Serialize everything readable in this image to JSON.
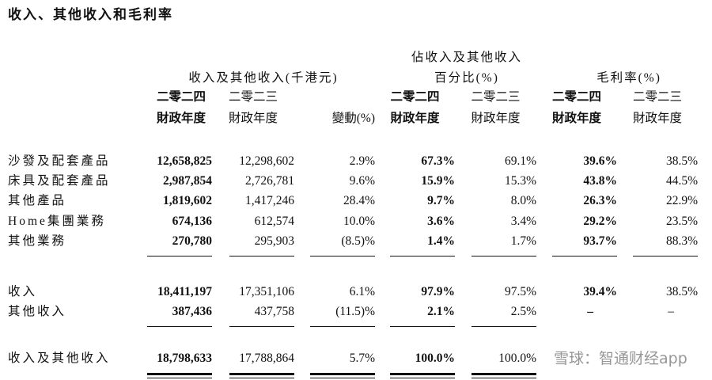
{
  "title": "收入、其他收入和毛利率",
  "headers": {
    "revenue_group": "收入及其他收入(千港元)",
    "pct_group_line1": "佔收入及其他收入",
    "pct_group_line2": "百分比(%)",
    "gm_group": "毛利率(%)",
    "year_2024": "二零二四",
    "year_2023": "二零二三",
    "fiscal_year": "財政年度",
    "change": "變動(%)"
  },
  "rows": [
    {
      "label": "沙發及配套產品",
      "rev2024": "12,658,825",
      "rev2023": "12,298,602",
      "change": "2.9%",
      "pct2024": "67.3%",
      "pct2023": "69.1%",
      "gm2024": "39.6%",
      "gm2023": "38.5%"
    },
    {
      "label": "床具及配套產品",
      "rev2024": "2,987,854",
      "rev2023": "2,726,781",
      "change": "9.6%",
      "pct2024": "15.9%",
      "pct2023": "15.3%",
      "gm2024": "43.8%",
      "gm2023": "44.5%"
    },
    {
      "label": "其他產品",
      "rev2024": "1,819,602",
      "rev2023": "1,417,246",
      "change": "28.4%",
      "pct2024": "9.7%",
      "pct2023": "8.0%",
      "gm2024": "26.3%",
      "gm2023": "22.9%"
    },
    {
      "label": "Home集團業務",
      "rev2024": "674,136",
      "rev2023": "612,574",
      "change": "10.0%",
      "pct2024": "3.6%",
      "pct2023": "3.4%",
      "gm2024": "29.2%",
      "gm2023": "23.5%"
    },
    {
      "label": "其他業務",
      "rev2024": "270,780",
      "rev2023": "295,903",
      "change": "(8.5)%",
      "pct2024": "1.4%",
      "pct2023": "1.7%",
      "gm2024": "93.7%",
      "gm2023": "88.3%"
    },
    {
      "label": "收入",
      "rev2024": "18,411,197",
      "rev2023": "17,351,106",
      "change": "6.1%",
      "pct2024": "97.9%",
      "pct2023": "97.5%",
      "gm2024": "39.4%",
      "gm2023": "38.5%"
    },
    {
      "label": "其他收入",
      "rev2024": "387,436",
      "rev2023": "437,758",
      "change": "(11.5)%",
      "pct2024": "2.1%",
      "pct2023": "2.5%",
      "gm2024": "–",
      "gm2023": "–"
    },
    {
      "label": "收入及其他收入",
      "rev2024": "18,798,633",
      "rev2023": "17,788,864",
      "change": "5.7%",
      "pct2024": "100.0%",
      "pct2023": "100.0%",
      "gm2024": "",
      "gm2023": ""
    }
  ],
  "watermark": "雪球：智通财经app"
}
